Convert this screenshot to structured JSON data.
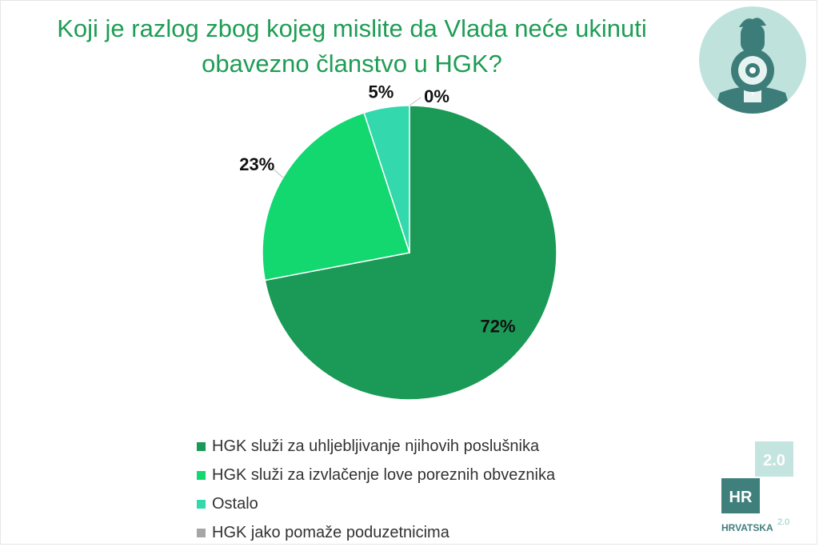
{
  "title": "Koji je razlog zbog kojeg mislite da Vlada neće ukinuti obavezno članstvo u HGK?",
  "chart_data": {
    "type": "pie",
    "title": "Koji je razlog zbog kojeg mislite da Vlada neće ukinuti obavezno članstvo u HGK?",
    "slices": [
      {
        "label": "HGK služi za uhljebljivanje njihovih poslušnika",
        "value": 72,
        "display": "72%",
        "color": "#1a9a56"
      },
      {
        "label": "HGK služi za izvlačenje love poreznih obveznika",
        "value": 23,
        "display": "23%",
        "color": "#12d86f"
      },
      {
        "label": "Ostalo",
        "value": 5,
        "display": "5%",
        "color": "#33d9ad"
      },
      {
        "label": "HGK jako pomaže poduzetnicima",
        "value": 0,
        "display": "0%",
        "color": "#a6a6a6"
      }
    ],
    "legend_position": "bottom"
  },
  "logo": {
    "badge": "2.0",
    "mark": "HR",
    "name": "HRVATSKA",
    "suffix": "2.0",
    "colors": {
      "dark": "#3f7f7c",
      "light": "#c3e4df"
    }
  },
  "avatar": {
    "icon": "megaphone-person-icon",
    "colors": {
      "bg": "#bfe3dc",
      "figure": "#3c7d7a"
    }
  }
}
